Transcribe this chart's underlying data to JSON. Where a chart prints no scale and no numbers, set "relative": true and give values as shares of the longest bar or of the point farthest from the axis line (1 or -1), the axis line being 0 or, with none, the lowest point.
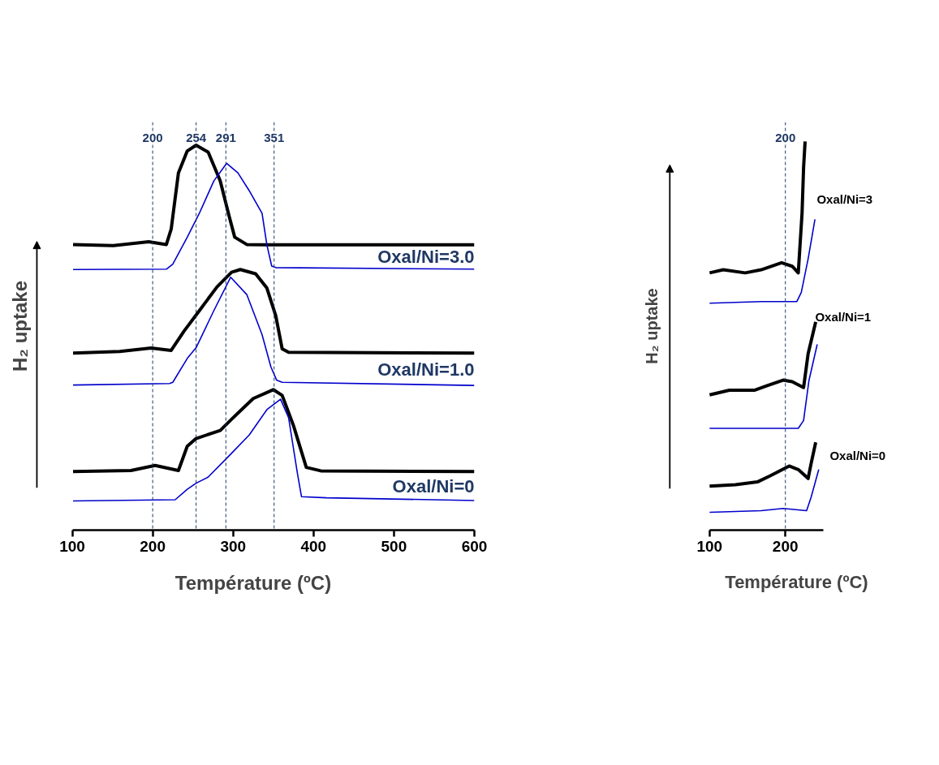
{
  "chart_data": [
    {
      "type": "line",
      "relative": true,
      "xlabel": "Température (ºC)",
      "ylabel": "H₂ uptake",
      "xlim": [
        100,
        600
      ],
      "xticks": [
        100,
        200,
        300,
        400,
        500,
        600
      ],
      "tick_labels": "x",
      "annotations": [
        "Oxal/Ni=3.0",
        "Oxal/Ni=1.0",
        "Oxal/Ni=0"
      ],
      "ref_lines": [
        {
          "axis": "x",
          "value": 200,
          "label": "200",
          "color": "#1f3864",
          "line_style": "dashed"
        },
        {
          "axis": "x",
          "value": 254,
          "label": "254",
          "color": "#1f3864",
          "line_style": "dashed"
        },
        {
          "axis": "x",
          "value": 291,
          "label": "291",
          "color": "#1f3864",
          "line_style": "dashed"
        },
        {
          "axis": "x",
          "value": 351,
          "label": "351",
          "color": "#1f3864",
          "line_style": "dashed"
        }
      ],
      "series": [
        {
          "color": "#000000",
          "x": [
            101,
            151,
            195,
            217,
            223,
            232,
            243,
            254,
            269,
            284,
            295,
            302,
            317,
            342,
            600
          ],
          "values": [
            0.742,
            0.739,
            0.749,
            0.742,
            0.782,
            0.928,
            0.985,
            1,
            0.982,
            0.907,
            0.816,
            0.761,
            0.742,
            0.741,
            0.741
          ]
        },
        {
          "color": "#0000cc",
          "x": [
            101,
            217,
            225,
            243,
            258,
            276,
            292,
            306,
            320,
            336,
            342,
            348,
            353,
            600
          ],
          "values": [
            0.677,
            0.678,
            0.691,
            0.761,
            0.823,
            0.907,
            0.953,
            0.928,
            0.882,
            0.823,
            0.741,
            0.686,
            0.682,
            0.678
          ]
        },
        {
          "color": "#000000",
          "x": [
            101,
            159,
            198,
            223,
            239,
            258,
            280,
            298,
            309,
            328,
            342,
            353,
            361,
            369,
            600
          ],
          "values": [
            0.46,
            0.464,
            0.473,
            0.467,
            0.517,
            0.57,
            0.632,
            0.67,
            0.677,
            0.666,
            0.629,
            0.557,
            0.471,
            0.462,
            0.46
          ]
        },
        {
          "color": "#0000cc",
          "x": [
            101,
            221,
            225,
            243,
            254,
            276,
            297,
            317,
            336,
            347,
            354,
            361,
            600
          ],
          "values": [
            0.377,
            0.381,
            0.384,
            0.446,
            0.474,
            0.57,
            0.657,
            0.612,
            0.508,
            0.424,
            0.39,
            0.384,
            0.376
          ]
        },
        {
          "color": "#000000",
          "x": [
            101,
            173,
            203,
            232,
            243,
            254,
            284,
            298,
            325,
            350,
            361,
            375,
            391,
            409,
            600
          ],
          "values": [
            0.152,
            0.155,
            0.168,
            0.155,
            0.218,
            0.238,
            0.259,
            0.288,
            0.342,
            0.365,
            0.35,
            0.272,
            0.163,
            0.154,
            0.152
          ]
        },
        {
          "color": "#0000cc",
          "x": [
            101,
            228,
            243,
            254,
            269,
            295,
            320,
            342,
            359,
            369,
            380,
            385,
            416,
            600
          ],
          "values": [
            0.076,
            0.079,
            0.106,
            0.122,
            0.138,
            0.193,
            0.247,
            0.313,
            0.34,
            0.292,
            0.147,
            0.087,
            0.084,
            0.077
          ]
        }
      ]
    },
    {
      "type": "line",
      "relative": true,
      "xlabel": "Température (ºC)",
      "ylabel": "H₂ uptake",
      "xlim": [
        100,
        250
      ],
      "xticks": [
        100,
        200
      ],
      "tick_labels": "x",
      "annotations": [
        "Oxal/Ni=3",
        "Oxal/Ni=1",
        "Oxal/Ni=0"
      ],
      "ref_lines": [
        {
          "axis": "x",
          "value": 200,
          "label": "200",
          "color": "#1f3864",
          "line_style": "dashed"
        }
      ],
      "series": [
        {
          "color": "#000000",
          "x": [
            100,
            118,
            147,
            168,
            195,
            209,
            217,
            222,
            224,
            226
          ],
          "values": [
            0.662,
            0.67,
            0.662,
            0.67,
            0.688,
            0.679,
            0.662,
            0.816,
            0.933,
            1
          ]
        },
        {
          "color": "#0000cc",
          "x": [
            100,
            168,
            215,
            221,
            230,
            239
          ],
          "values": [
            0.584,
            0.588,
            0.588,
            0.612,
            0.698,
            0.8
          ]
        },
        {
          "color": "#000000",
          "x": [
            100,
            126,
            159,
            176,
            197,
            209,
            224,
            230,
            240
          ],
          "values": [
            0.348,
            0.36,
            0.36,
            0.372,
            0.386,
            0.382,
            0.367,
            0.454,
            0.536
          ]
        },
        {
          "color": "#0000cc",
          "x": [
            100,
            168,
            217,
            224,
            231,
            242
          ],
          "values": [
            0.262,
            0.262,
            0.262,
            0.282,
            0.384,
            0.478
          ]
        },
        {
          "color": "#000000",
          "x": [
            100,
            134,
            163,
            180,
            205,
            217,
            230,
            234,
            240
          ],
          "values": [
            0.113,
            0.117,
            0.124,
            0.14,
            0.165,
            0.156,
            0.133,
            0.172,
            0.226
          ]
        },
        {
          "color": "#0000cc",
          "x": [
            100,
            168,
            197,
            228,
            234,
            244
          ],
          "values": [
            0.046,
            0.05,
            0.056,
            0.05,
            0.085,
            0.156
          ]
        }
      ]
    }
  ]
}
